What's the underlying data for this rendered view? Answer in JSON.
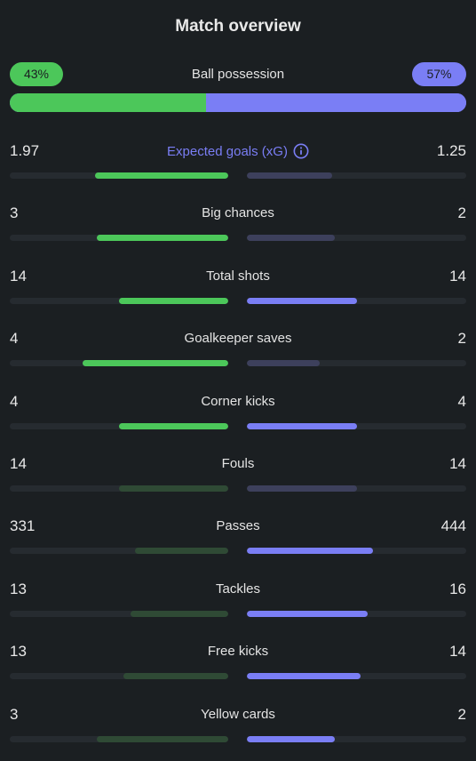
{
  "title": "Match overview",
  "colors": {
    "home": "#4cc75a",
    "home_dim": "#2f4a35",
    "away": "#7a7ef5",
    "away_dim": "#3d405c",
    "track": "#262b30",
    "background": "#1b1f22"
  },
  "possession": {
    "label": "Ball possession",
    "home_text": "43%",
    "away_text": "57%",
    "home": 43,
    "away": 57
  },
  "stats": [
    {
      "label": "Expected goals (xG)",
      "home": "1.97",
      "away": "1.25",
      "home_ratio": 0.61,
      "away_ratio": 0.39,
      "home_better": true,
      "accent": true,
      "info_icon": "info-circle-icon"
    },
    {
      "label": "Big chances",
      "home": "3",
      "away": "2",
      "home_ratio": 0.6,
      "away_ratio": 0.4,
      "home_better": true
    },
    {
      "label": "Total shots",
      "home": "14",
      "away": "14",
      "home_ratio": 0.5,
      "away_ratio": 0.5,
      "home_better": true,
      "away_better": true
    },
    {
      "label": "Goalkeeper saves",
      "home": "4",
      "away": "2",
      "home_ratio": 0.667,
      "away_ratio": 0.333,
      "home_better": true
    },
    {
      "label": "Corner kicks",
      "home": "4",
      "away": "4",
      "home_ratio": 0.5,
      "away_ratio": 0.5,
      "home_better": true,
      "away_better": true
    },
    {
      "label": "Fouls",
      "home": "14",
      "away": "14",
      "home_ratio": 0.5,
      "away_ratio": 0.5
    },
    {
      "label": "Passes",
      "home": "331",
      "away": "444",
      "home_ratio": 0.427,
      "away_ratio": 0.573,
      "away_better": true
    },
    {
      "label": "Tackles",
      "home": "13",
      "away": "16",
      "home_ratio": 0.448,
      "away_ratio": 0.552,
      "away_better": true
    },
    {
      "label": "Free kicks",
      "home": "13",
      "away": "14",
      "home_ratio": 0.481,
      "away_ratio": 0.519,
      "away_better": true
    },
    {
      "label": "Yellow cards",
      "home": "3",
      "away": "2",
      "home_ratio": 0.6,
      "away_ratio": 0.4,
      "away_better": true
    }
  ]
}
